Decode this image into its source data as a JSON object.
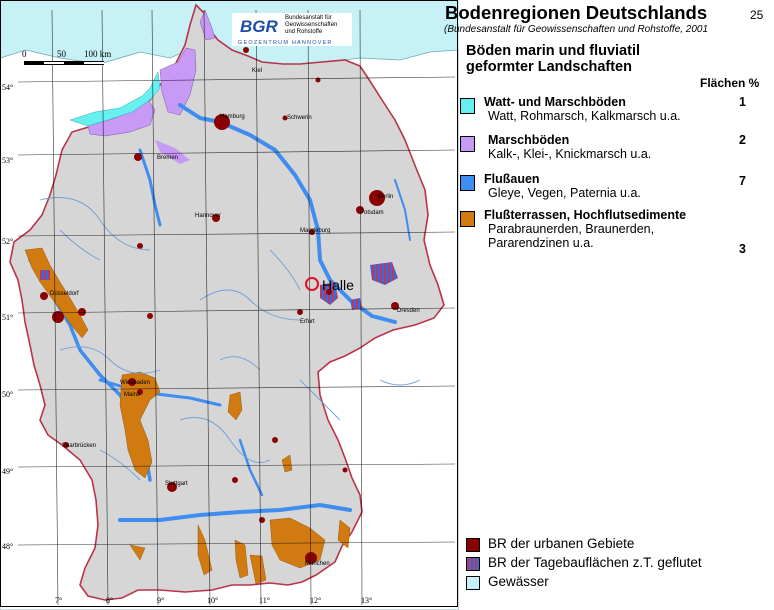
{
  "header": {
    "title": "Bodenregionen Deutschlands",
    "page_number": "25",
    "source": "(Bundesanstalt für Geowissenschaften und Rohstoffe, 2001"
  },
  "logo": {
    "acronym": "BGR",
    "text_line1": "Bundesanstalt für",
    "text_line2": "Geowissenschaften",
    "text_line3": "und Rohstoffe",
    "center": "GEOZENTRUM HANNOVER"
  },
  "scale_bar": {
    "labels": [
      "0",
      "50",
      "100 km"
    ]
  },
  "map": {
    "lat_labels": [
      "54°",
      "53°",
      "52°",
      "51°",
      "50°",
      "49°",
      "48°"
    ],
    "lon_labels": [
      "7°",
      "8°",
      "9°",
      "10°",
      "11°",
      "12°",
      "13°"
    ],
    "cities": {
      "kiel": "Kiel",
      "hamburg": "Hamburg",
      "schwerin": "Schwerin",
      "bremen": "Bremen",
      "berlin": "Berlin",
      "potsdam": "Potsdam",
      "hannover": "Hannover",
      "magdeburg": "Magdeburg",
      "duesseldorf": "Düsseldorf",
      "erfurt": "Erfurt",
      "dresden": "Dresden",
      "wiesbaden": "Wiesbaden",
      "mainz": "Mainz",
      "saarbruecken": "Saarbrücken",
      "stuttgart": "Stuttgart",
      "muenchen": "München"
    },
    "marker_label": "Halle"
  },
  "legend": {
    "heading": "Böden marin und fluviatil geformter Landschaften",
    "column_header": "Flächen %",
    "items": [
      {
        "title": "Watt- und Marschböden",
        "desc": "Watt, Rohmarsch, Kalkmarsch u.a.",
        "pct": "1",
        "color": "#66f0f0"
      },
      {
        "title": "Marschböden",
        "desc": "Kalk-, Klei-, Knickmarsch u.a.",
        "pct": "2",
        "color": "#c79af5"
      },
      {
        "title": "Flußauen",
        "desc": "Gleye, Vegen, Paternia u.a.",
        "pct": "7",
        "color": "#3f8df0"
      },
      {
        "title": "Flußterrassen, Hochflutsedimente",
        "desc": "Parabraunerden, Braunerden, Pararendzinen  u.a.",
        "pct": "3",
        "color": "#d07a10"
      }
    ]
  },
  "bottom_legend": [
    {
      "label": "BR der urbanen Gebiete",
      "color": "#8b0000"
    },
    {
      "label": "BR der Tagebauflächen z.T. geflutet",
      "color": "#3a6bd6"
    },
    {
      "label": "Gewässer",
      "color": "#c6f1f6"
    }
  ],
  "colors": {
    "land": "#d6d6d6",
    "outside": "#ffffff",
    "sea": "#c6f1f6",
    "border": "#b9334a",
    "urban": "#8b0000",
    "river": "#6fa0d8",
    "floodplain": "#3f8df0",
    "terrace": "#d07a10",
    "marsh": "#c79af5",
    "watt": "#66f0f0"
  }
}
